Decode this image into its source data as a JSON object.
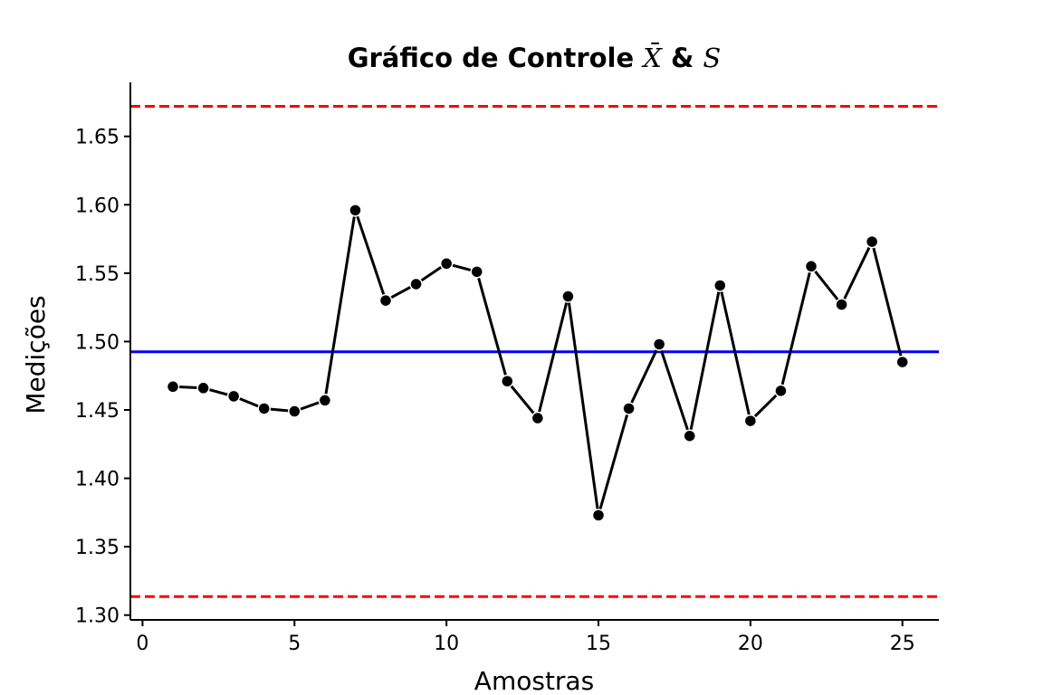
{
  "chart_data": {
    "type": "line",
    "title": {
      "prefix": "Gráfico de Controle ",
      "symbol1": "X̄",
      "middle": " & ",
      "symbol2": "S"
    },
    "xlabel": "Amostras",
    "ylabel": "Medições",
    "xlim": [
      -0.4,
      26.2
    ],
    "ylim": [
      1.2965,
      1.6895
    ],
    "xticks": [
      0,
      5,
      10,
      15,
      20,
      25
    ],
    "yticks": [
      1.3,
      1.35,
      1.4,
      1.45,
      1.5,
      1.55,
      1.6,
      1.65
    ],
    "grid": false,
    "series": [
      {
        "x": [
          1,
          2,
          3,
          4,
          5,
          6,
          7,
          8,
          9,
          10,
          11,
          12,
          13,
          14,
          15,
          16,
          17,
          18,
          19,
          20,
          21,
          22,
          23,
          24,
          25
        ],
        "values": [
          1.467,
          1.466,
          1.46,
          1.451,
          1.449,
          1.457,
          1.596,
          1.53,
          1.542,
          1.557,
          1.551,
          1.471,
          1.444,
          1.533,
          1.373,
          1.451,
          1.498,
          1.431,
          1.541,
          1.442,
          1.464,
          1.555,
          1.527,
          1.573,
          1.485
        ],
        "color": "#000000"
      }
    ],
    "control_lines": {
      "center": {
        "value": 1.4925,
        "color": "#0000ff"
      },
      "ucl": {
        "value": 1.672,
        "color": "#ff0000"
      },
      "lcl": {
        "value": 1.3135,
        "color": "#ff0000"
      }
    }
  }
}
